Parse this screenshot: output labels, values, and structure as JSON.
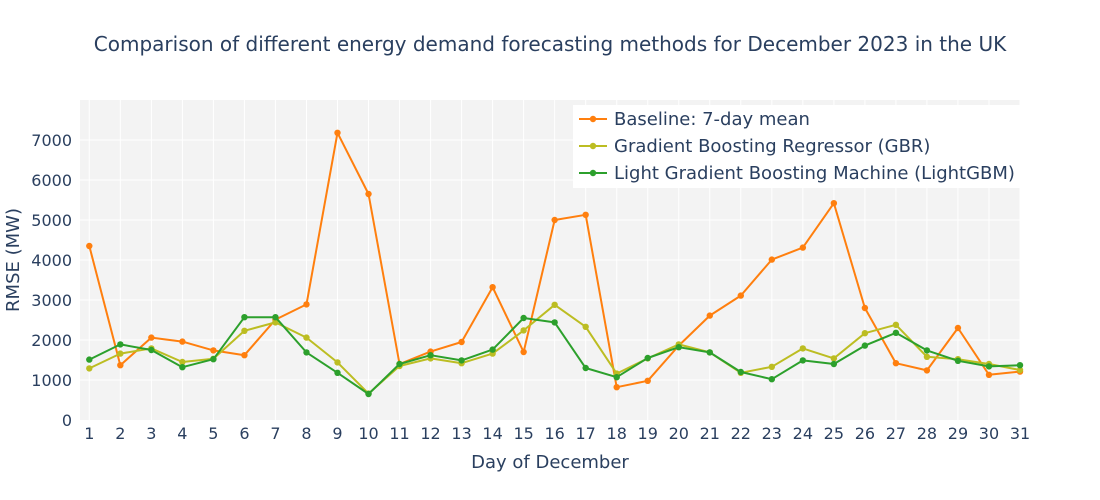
{
  "chart_data": {
    "type": "line",
    "title": "Comparison of different energy demand forecasting methods for December 2023 in the UK",
    "xlabel": "Day of December",
    "ylabel": "RMSE (MW)",
    "xlim": [
      0.7,
      31
    ],
    "ylim": [
      0,
      8000
    ],
    "x": [
      1,
      2,
      3,
      4,
      5,
      6,
      7,
      8,
      9,
      10,
      11,
      12,
      13,
      14,
      15,
      16,
      17,
      18,
      19,
      20,
      21,
      22,
      23,
      24,
      25,
      26,
      27,
      28,
      29,
      30,
      31
    ],
    "yticks": [
      0,
      1000,
      2000,
      3000,
      4000,
      5000,
      6000,
      7000
    ],
    "grid": true,
    "legend_position": "top-right",
    "series": [
      {
        "name": "Baseline: 7-day mean",
        "color": "#ff7f0e",
        "values": [
          4350,
          1370,
          2060,
          1960,
          1740,
          1620,
          2510,
          2890,
          7180,
          5650,
          1400,
          1710,
          1950,
          3320,
          1700,
          5000,
          5130,
          820,
          980,
          1860,
          2610,
          3110,
          4010,
          4310,
          5420,
          2800,
          1420,
          1240,
          2300,
          1130,
          1210
        ]
      },
      {
        "name": "Gradient Boosting Regressor (GBR)",
        "color": "#bcbd22",
        "values": [
          1290,
          1660,
          1790,
          1450,
          1530,
          2230,
          2440,
          2060,
          1440,
          660,
          1350,
          1540,
          1420,
          1660,
          2240,
          2880,
          2330,
          1160,
          1540,
          1890,
          1690,
          1180,
          1330,
          1790,
          1540,
          2170,
          2380,
          1580,
          1520,
          1400,
          1250
        ]
      },
      {
        "name": "Light Gradient Boosting Machine (LightGBM)",
        "color": "#2ca02c",
        "values": [
          1510,
          1890,
          1750,
          1320,
          1520,
          2570,
          2570,
          1690,
          1180,
          650,
          1400,
          1620,
          1490,
          1760,
          2550,
          2440,
          1300,
          1070,
          1550,
          1820,
          1690,
          1200,
          1020,
          1490,
          1400,
          1860,
          2180,
          1740,
          1480,
          1340,
          1370
        ]
      }
    ]
  }
}
